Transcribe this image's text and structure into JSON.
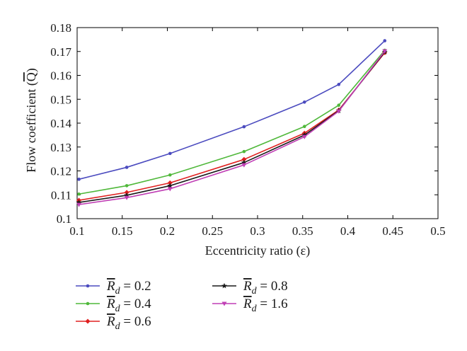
{
  "chart_data": {
    "type": "line",
    "xlabel": "Eccentricity ratio (ε)",
    "ylabel": "Flow coefficient (Q)",
    "ylabel_overbar": "Q",
    "xlim": [
      0.1,
      0.5
    ],
    "ylim": [
      0.1,
      0.18
    ],
    "xticks": [
      0.1,
      0.15,
      0.2,
      0.25,
      0.3,
      0.35,
      0.4,
      0.45,
      0.5
    ],
    "xtick_labels": [
      "0.1",
      "0.15",
      "0.2",
      "0.25",
      "0.3",
      "0.35",
      "0.4",
      "0.45",
      "0.5"
    ],
    "yticks": [
      0.1,
      0.11,
      0.12,
      0.13,
      0.14,
      0.15,
      0.16,
      0.17,
      0.18
    ],
    "ytick_labels": [
      "0.1",
      "0.11",
      "0.12",
      "0.13",
      "0.14",
      "0.15",
      "0.16",
      "0.17",
      "0.18"
    ],
    "grid": false,
    "legend_position": "below",
    "x": [
      0.102,
      0.155,
      0.203,
      0.285,
      0.352,
      0.39,
      0.441
    ],
    "series": [
      {
        "name": "R̄d = 0.2",
        "legend_var": "R",
        "legend_sub": "d",
        "legend_value": "= 0.2",
        "color": "#4B4BBF",
        "marker": "dot",
        "values": [
          0.1165,
          0.1215,
          0.1273,
          0.1385,
          0.1488,
          0.1562,
          0.1745
        ]
      },
      {
        "name": "R̄d = 0.4",
        "legend_var": "R",
        "legend_sub": "d",
        "legend_value": "= 0.4",
        "color": "#4FB83A",
        "marker": "dot",
        "values": [
          0.1103,
          0.1138,
          0.1183,
          0.1281,
          0.1386,
          0.1475,
          0.1705
        ]
      },
      {
        "name": "R̄d = 0.6",
        "legend_var": "R",
        "legend_sub": "d",
        "legend_value": "= 0.6",
        "color": "#E02020",
        "marker": "diamond",
        "values": [
          0.1077,
          0.111,
          0.115,
          0.1248,
          0.1358,
          0.1455,
          0.1695
        ]
      },
      {
        "name": "R̄d = 0.8",
        "legend_var": "R",
        "legend_sub": "d",
        "legend_value": "= 0.8",
        "color": "#1a1a1a",
        "marker": "star",
        "values": [
          0.1068,
          0.1098,
          0.1138,
          0.1235,
          0.135,
          0.1452,
          0.1698
        ]
      },
      {
        "name": "R̄d = 1.6",
        "legend_var": "R",
        "legend_sub": "d",
        "legend_value": "= 1.6",
        "color": "#C03FB5",
        "marker": "triangle",
        "values": [
          0.1059,
          0.1088,
          0.1125,
          0.1225,
          0.1343,
          0.145,
          0.1702
        ]
      }
    ]
  }
}
